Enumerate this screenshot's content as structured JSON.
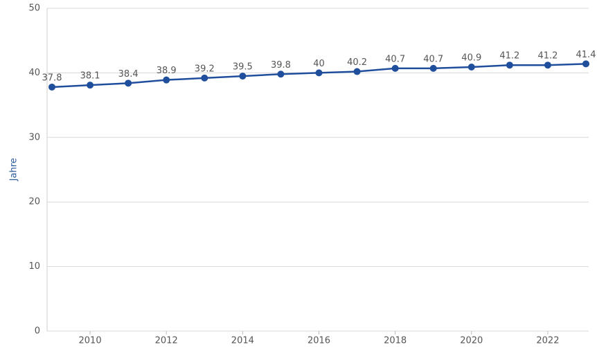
{
  "chart_data": {
    "type": "line",
    "y_label": "Jahre",
    "x": [
      2009,
      2010,
      2011,
      2012,
      2013,
      2014,
      2015,
      2016,
      2017,
      2018,
      2019,
      2020,
      2021,
      2022,
      2023
    ],
    "series": [
      {
        "color": "#1f4e9c",
        "values": [
          37.8,
          38.1,
          38.4,
          38.9,
          39.2,
          39.5,
          39.8,
          40,
          40.2,
          40.7,
          40.7,
          40.9,
          41.2,
          41.2,
          41.4
        ]
      }
    ],
    "xlim": [
      2009,
      2023
    ],
    "xticks": [
      2010,
      2012,
      2014,
      2016,
      2018,
      2020,
      2022
    ],
    "ylim": [
      0,
      50
    ],
    "yticks": [
      0,
      10,
      20,
      30,
      40,
      50
    ],
    "grid": true
  }
}
